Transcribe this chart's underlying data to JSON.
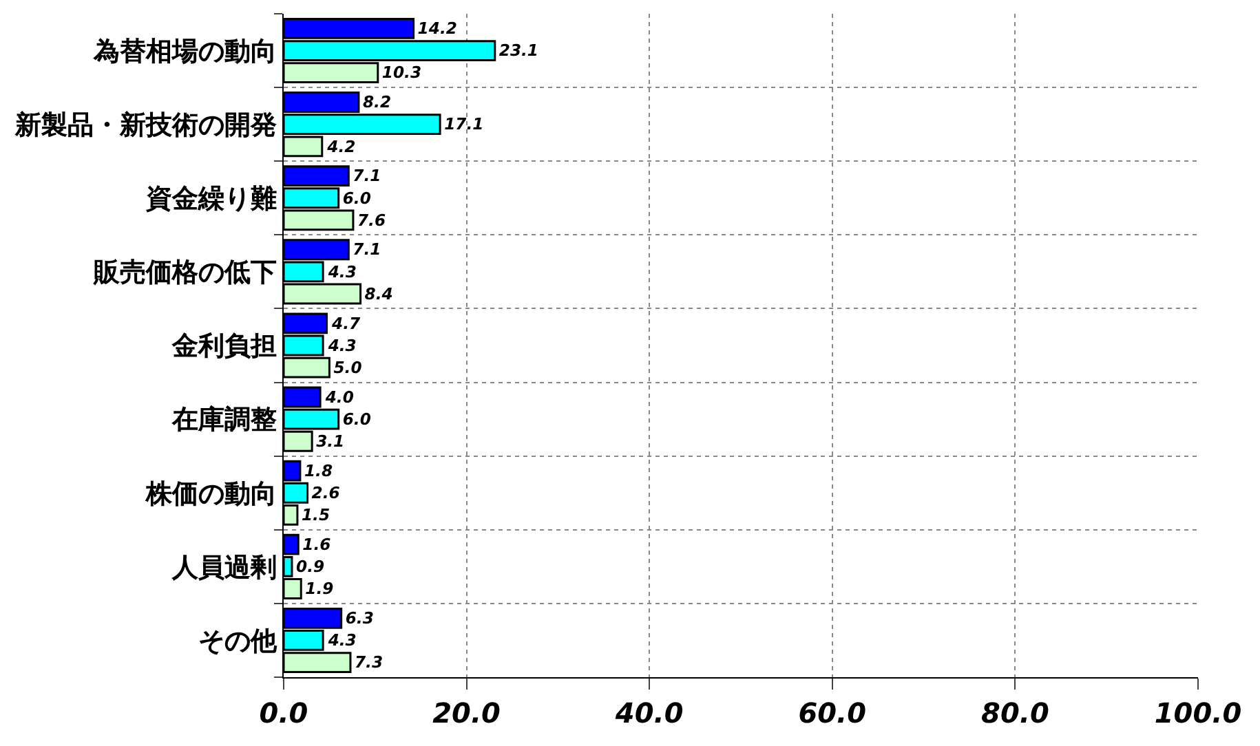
{
  "chart_data": {
    "type": "bar",
    "orientation": "horizontal",
    "categories": [
      "為替相場の動向",
      "新製品・新技術の開発",
      "資金繰り難",
      "販売価格の低下",
      "金利負担",
      "在庫調整",
      "株価の動向",
      "人員過剰",
      "その他"
    ],
    "series": [
      {
        "color": "#0000ff",
        "values": [
          14.2,
          8.2,
          7.1,
          7.1,
          4.7,
          4.0,
          1.8,
          1.6,
          6.3
        ],
        "value_labels": [
          "14.2",
          "8.2",
          "7.1",
          "7.1",
          "4.7",
          "4.0",
          "1.8",
          "1.6",
          "6.3"
        ]
      },
      {
        "color": "#00ffff",
        "values": [
          23.1,
          17.1,
          6.0,
          4.3,
          4.3,
          6.0,
          2.6,
          0.9,
          4.3
        ],
        "value_labels": [
          "23.1",
          "17.1",
          "6.0",
          "4.3",
          "4.3",
          "6.0",
          "2.6",
          "0.9",
          "4.3"
        ]
      },
      {
        "color": "#ccffcc",
        "values": [
          10.3,
          4.2,
          7.6,
          8.4,
          5.0,
          3.1,
          1.5,
          1.9,
          7.3
        ],
        "value_labels": [
          "10.3",
          "4.2",
          "7.6",
          "8.4",
          "5.0",
          "3.1",
          "1.5",
          "1.9",
          "7.3"
        ]
      }
    ],
    "xlim": [
      0,
      100
    ],
    "xticks": [
      {
        "value": 0,
        "label": "0.0"
      },
      {
        "value": 20,
        "label": "20.0"
      },
      {
        "value": 40,
        "label": "40.0"
      },
      {
        "value": 60,
        "label": "60.0"
      },
      {
        "value": 80,
        "label": "80.0"
      },
      {
        "value": 100,
        "label": "100.0"
      }
    ],
    "grid": true,
    "legend": false
  }
}
